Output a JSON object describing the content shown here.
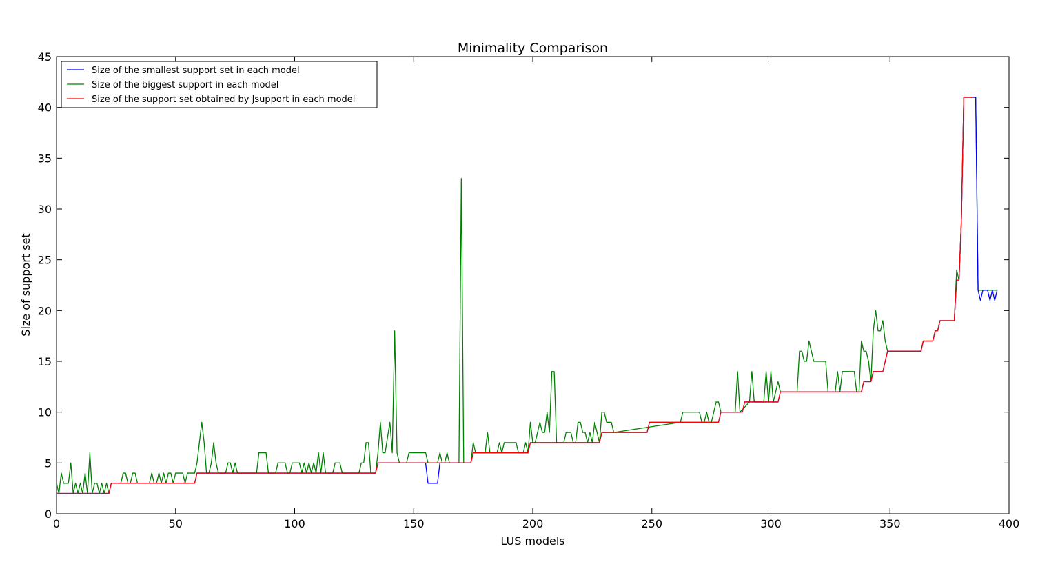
{
  "chart_data": {
    "type": "line",
    "title": "Minimality Comparison",
    "xlabel": "LUS models",
    "ylabel": "Size of support set",
    "xlim": [
      0,
      400
    ],
    "ylim": [
      0,
      45
    ],
    "xticks": [
      0,
      50,
      100,
      150,
      200,
      250,
      300,
      350,
      400
    ],
    "yticks": [
      0,
      5,
      10,
      15,
      20,
      25,
      30,
      35,
      40,
      45
    ],
    "grid": false,
    "legend_position": "top-left",
    "series": [
      {
        "name": "Size of the smallest support set in each model",
        "color": "#0000ff",
        "points": [
          [
            0,
            2
          ],
          [
            22,
            2
          ],
          [
            23,
            3
          ],
          [
            58,
            3
          ],
          [
            59,
            4
          ],
          [
            134,
            4
          ],
          [
            135,
            5
          ],
          [
            155,
            5
          ],
          [
            156,
            3
          ],
          [
            160,
            3
          ],
          [
            161,
            5
          ],
          [
            174,
            5
          ],
          [
            175,
            6
          ],
          [
            198,
            6
          ],
          [
            199,
            7
          ],
          [
            228,
            7
          ],
          [
            229,
            8
          ],
          [
            248,
            8
          ],
          [
            249,
            9
          ],
          [
            278,
            9
          ],
          [
            279,
            10
          ],
          [
            288,
            10
          ],
          [
            289,
            11
          ],
          [
            303,
            11
          ],
          [
            304,
            12
          ],
          [
            338,
            12
          ],
          [
            339,
            13
          ],
          [
            342,
            13
          ],
          [
            343,
            14
          ],
          [
            347,
            14
          ],
          [
            349,
            16
          ],
          [
            363,
            16
          ],
          [
            364,
            17
          ],
          [
            368,
            17
          ],
          [
            369,
            18
          ],
          [
            370,
            18
          ],
          [
            371,
            19
          ],
          [
            377,
            19
          ],
          [
            378,
            23
          ],
          [
            379,
            23
          ],
          [
            380,
            29
          ],
          [
            381,
            41
          ],
          [
            386,
            41
          ],
          [
            387,
            22
          ],
          [
            388,
            21
          ],
          [
            389,
            22
          ],
          [
            391,
            22
          ],
          [
            392,
            21
          ],
          [
            393,
            22
          ],
          [
            394,
            21
          ],
          [
            395,
            22
          ]
        ]
      },
      {
        "name": "Size of the biggest support in each model",
        "color": "#008000",
        "points": [
          [
            0,
            3
          ],
          [
            1,
            2
          ],
          [
            2,
            4
          ],
          [
            3,
            3
          ],
          [
            5,
            3
          ],
          [
            6,
            5
          ],
          [
            7,
            2
          ],
          [
            8,
            3
          ],
          [
            9,
            2
          ],
          [
            10,
            3
          ],
          [
            11,
            2
          ],
          [
            12,
            4
          ],
          [
            13,
            2
          ],
          [
            14,
            6
          ],
          [
            15,
            2
          ],
          [
            16,
            3
          ],
          [
            17,
            3
          ],
          [
            18,
            2
          ],
          [
            19,
            3
          ],
          [
            20,
            2
          ],
          [
            21,
            3
          ],
          [
            22,
            2
          ],
          [
            23,
            3
          ],
          [
            27,
            3
          ],
          [
            28,
            4
          ],
          [
            29,
            4
          ],
          [
            30,
            3
          ],
          [
            31,
            3
          ],
          [
            32,
            4
          ],
          [
            33,
            4
          ],
          [
            34,
            3
          ],
          [
            39,
            3
          ],
          [
            40,
            4
          ],
          [
            41,
            3
          ],
          [
            42,
            3
          ],
          [
            43,
            4
          ],
          [
            44,
            3
          ],
          [
            45,
            4
          ],
          [
            46,
            3
          ],
          [
            47,
            4
          ],
          [
            48,
            4
          ],
          [
            49,
            3
          ],
          [
            50,
            4
          ],
          [
            53,
            4
          ],
          [
            54,
            3
          ],
          [
            55,
            4
          ],
          [
            58,
            4
          ],
          [
            59,
            5
          ],
          [
            61,
            9
          ],
          [
            62,
            7
          ],
          [
            63,
            4
          ],
          [
            64,
            4
          ],
          [
            65,
            5
          ],
          [
            66,
            7
          ],
          [
            67,
            5
          ],
          [
            68,
            4
          ],
          [
            71,
            4
          ],
          [
            72,
            5
          ],
          [
            73,
            5
          ],
          [
            74,
            4
          ],
          [
            75,
            5
          ],
          [
            76,
            4
          ],
          [
            84,
            4
          ],
          [
            85,
            6
          ],
          [
            88,
            6
          ],
          [
            89,
            4
          ],
          [
            92,
            4
          ],
          [
            93,
            5
          ],
          [
            96,
            5
          ],
          [
            97,
            4
          ],
          [
            98,
            4
          ],
          [
            99,
            5
          ],
          [
            102,
            5
          ],
          [
            103,
            4
          ],
          [
            104,
            5
          ],
          [
            105,
            4
          ],
          [
            106,
            5
          ],
          [
            107,
            4
          ],
          [
            108,
            5
          ],
          [
            109,
            4
          ],
          [
            110,
            6
          ],
          [
            111,
            4
          ],
          [
            112,
            6
          ],
          [
            113,
            4
          ],
          [
            116,
            4
          ],
          [
            117,
            5
          ],
          [
            119,
            5
          ],
          [
            120,
            4
          ],
          [
            127,
            4
          ],
          [
            128,
            5
          ],
          [
            129,
            5
          ],
          [
            130,
            7
          ],
          [
            131,
            7
          ],
          [
            132,
            4
          ],
          [
            134,
            4
          ],
          [
            135,
            6
          ],
          [
            136,
            9
          ],
          [
            137,
            6
          ],
          [
            138,
            6
          ],
          [
            140,
            9
          ],
          [
            141,
            6
          ],
          [
            142,
            18
          ],
          [
            143,
            6
          ],
          [
            144,
            5
          ],
          [
            147,
            5
          ],
          [
            148,
            6
          ],
          [
            155,
            6
          ],
          [
            156,
            5
          ],
          [
            160,
            5
          ],
          [
            161,
            6
          ],
          [
            162,
            5
          ],
          [
            163,
            5
          ],
          [
            164,
            6
          ],
          [
            165,
            5
          ],
          [
            169,
            5
          ],
          [
            170,
            33
          ],
          [
            171,
            5
          ],
          [
            174,
            5
          ],
          [
            175,
            7
          ],
          [
            176,
            6
          ],
          [
            180,
            6
          ],
          [
            181,
            8
          ],
          [
            182,
            6
          ],
          [
            185,
            6
          ],
          [
            186,
            7
          ],
          [
            187,
            6
          ],
          [
            188,
            7
          ],
          [
            193,
            7
          ],
          [
            194,
            6
          ],
          [
            196,
            6
          ],
          [
            197,
            7
          ],
          [
            198,
            6
          ],
          [
            199,
            9
          ],
          [
            200,
            7
          ],
          [
            201,
            7
          ],
          [
            202,
            8
          ],
          [
            203,
            9
          ],
          [
            204,
            8
          ],
          [
            205,
            8
          ],
          [
            206,
            10
          ],
          [
            207,
            8
          ],
          [
            208,
            14
          ],
          [
            209,
            14
          ],
          [
            210,
            7
          ],
          [
            213,
            7
          ],
          [
            214,
            8
          ],
          [
            216,
            8
          ],
          [
            217,
            7
          ],
          [
            218,
            7
          ],
          [
            219,
            9
          ],
          [
            220,
            9
          ],
          [
            221,
            8
          ],
          [
            222,
            8
          ],
          [
            223,
            7
          ],
          [
            224,
            8
          ],
          [
            225,
            7
          ],
          [
            226,
            9
          ],
          [
            227,
            8
          ],
          [
            228,
            7
          ],
          [
            229,
            10
          ],
          [
            230,
            10
          ],
          [
            231,
            9
          ],
          [
            233,
            9
          ],
          [
            234,
            8
          ],
          [
            262,
            9
          ],
          [
            263,
            10
          ],
          [
            270,
            10
          ],
          [
            271,
            9
          ],
          [
            272,
            9
          ],
          [
            273,
            10
          ],
          [
            274,
            9
          ],
          [
            275,
            9
          ],
          [
            276,
            10
          ],
          [
            277,
            11
          ],
          [
            278,
            11
          ],
          [
            279,
            10
          ],
          [
            285,
            10
          ],
          [
            286,
            14
          ],
          [
            287,
            10
          ],
          [
            291,
            11
          ],
          [
            292,
            14
          ],
          [
            293,
            11
          ],
          [
            297,
            11
          ],
          [
            298,
            14
          ],
          [
            299,
            11
          ],
          [
            300,
            14
          ],
          [
            301,
            11
          ],
          [
            302,
            12
          ],
          [
            303,
            13
          ],
          [
            304,
            12
          ],
          [
            311,
            12
          ],
          [
            312,
            16
          ],
          [
            313,
            16
          ],
          [
            314,
            15
          ],
          [
            315,
            15
          ],
          [
            316,
            17
          ],
          [
            317,
            16
          ],
          [
            318,
            15
          ],
          [
            323,
            15
          ],
          [
            324,
            12
          ],
          [
            327,
            12
          ],
          [
            328,
            14
          ],
          [
            329,
            12
          ],
          [
            330,
            14
          ],
          [
            335,
            14
          ],
          [
            336,
            12
          ],
          [
            337,
            12
          ],
          [
            338,
            17
          ],
          [
            339,
            16
          ],
          [
            340,
            16
          ],
          [
            341,
            15
          ],
          [
            342,
            13
          ],
          [
            343,
            18
          ],
          [
            344,
            20
          ],
          [
            345,
            18
          ],
          [
            346,
            18
          ],
          [
            347,
            19
          ],
          [
            348,
            17
          ],
          [
            349,
            16
          ],
          [
            363,
            16
          ],
          [
            364,
            17
          ],
          [
            368,
            17
          ],
          [
            369,
            18
          ],
          [
            370,
            18
          ],
          [
            371,
            19
          ],
          [
            377,
            19
          ],
          [
            378,
            24
          ],
          [
            379,
            23
          ],
          [
            380,
            29
          ],
          [
            381,
            41
          ],
          [
            386,
            41
          ],
          [
            387,
            22
          ],
          [
            395,
            22
          ]
        ]
      },
      {
        "name": "Size of the support set obtained by Jsupport in each model",
        "color": "#ff0000",
        "points": [
          [
            0,
            2
          ],
          [
            22,
            2
          ],
          [
            23,
            3
          ],
          [
            58,
            3
          ],
          [
            59,
            4
          ],
          [
            134,
            4
          ],
          [
            135,
            5
          ],
          [
            174,
            5
          ],
          [
            175,
            6
          ],
          [
            198,
            6
          ],
          [
            199,
            7
          ],
          [
            228,
            7
          ],
          [
            229,
            8
          ],
          [
            248,
            8
          ],
          [
            249,
            9
          ],
          [
            278,
            9
          ],
          [
            279,
            10
          ],
          [
            288,
            10
          ],
          [
            289,
            11
          ],
          [
            303,
            11
          ],
          [
            304,
            12
          ],
          [
            338,
            12
          ],
          [
            339,
            13
          ],
          [
            342,
            13
          ],
          [
            343,
            14
          ],
          [
            347,
            14
          ],
          [
            349,
            16
          ],
          [
            363,
            16
          ],
          [
            364,
            17
          ],
          [
            368,
            17
          ],
          [
            369,
            18
          ],
          [
            370,
            18
          ],
          [
            371,
            19
          ],
          [
            377,
            19
          ],
          [
            378,
            23
          ],
          [
            379,
            23
          ],
          [
            380,
            29
          ],
          [
            381,
            41
          ],
          [
            385,
            41
          ]
        ]
      }
    ]
  }
}
